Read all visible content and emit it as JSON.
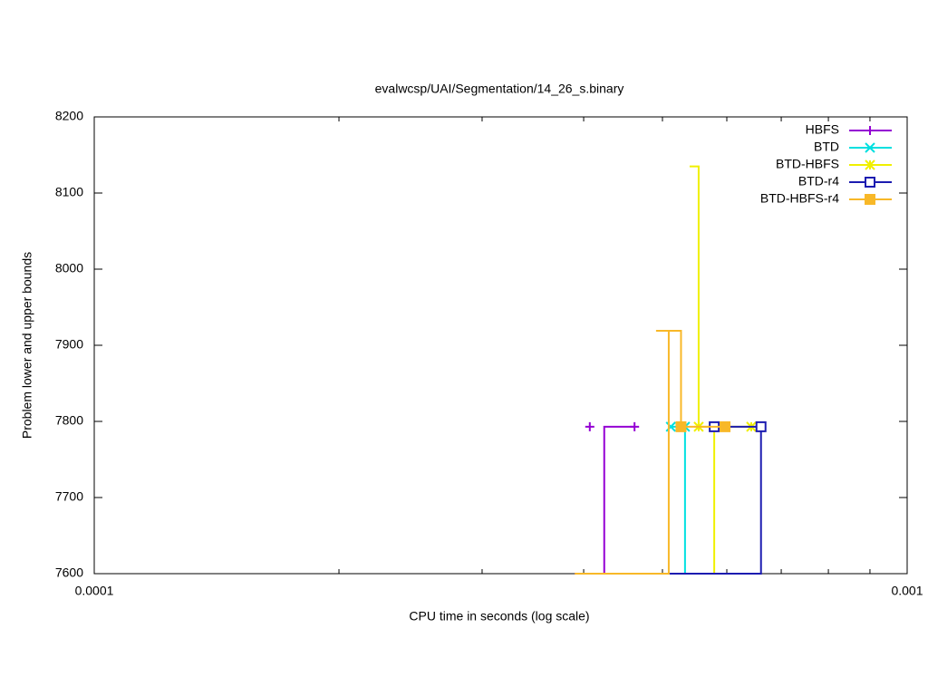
{
  "chart_data": {
    "type": "line",
    "title": "evalwcsp/UAI/Segmentation/14_26_s.binary",
    "xlabel": "CPU time in seconds (log scale)",
    "ylabel": "Problem lower and upper bounds",
    "xscale": "log",
    "xlim": [
      0.0001,
      0.001
    ],
    "xticks": [
      0.0001,
      0.001
    ],
    "xminorticks": [
      0.0002,
      0.0003,
      0.0004,
      0.0005,
      0.0006,
      0.0007,
      0.0008,
      0.0009
    ],
    "ylim": [
      7600,
      8200
    ],
    "yticks": [
      7600,
      7700,
      7800,
      7900,
      8000,
      8100,
      8200
    ],
    "grid": false,
    "legend": "top-right",
    "series": [
      {
        "name": "HBFS",
        "color": "#9400d3",
        "marker": "plus",
        "x": [
          0.00039,
          0.000424,
          0.000424,
          0.000462
        ],
        "values": [
          7600,
          7600,
          7793,
          7793
        ],
        "marker_x": [
          0.000407,
          0.000462
        ],
        "marker_values": [
          7793,
          7793
        ]
      },
      {
        "name": "BTD",
        "color": "#00e0e0",
        "marker": "cross",
        "x": [
          0.000512,
          0.000533,
          0.000533
        ],
        "values": [
          7793,
          7793,
          7600
        ],
        "marker_x": [
          0.000512,
          0.000533
        ],
        "marker_values": [
          7793,
          7793
        ]
      },
      {
        "name": "BTD-HBFS",
        "color": "#f0f000",
        "marker": "star",
        "x": [
          0.00054,
          0.000554,
          0.000554,
          0.000643,
          null,
          0.000579,
          0.000579
        ],
        "values": [
          8135,
          8135,
          7793,
          7793,
          null,
          7793,
          7600
        ],
        "marker_x": [
          0.000554,
          0.000643
        ],
        "marker_values": [
          7793,
          7793
        ]
      },
      {
        "name": "BTD-r4",
        "color": "#1c1cb0",
        "marker": "square",
        "x": [
          0.000509,
          0.000661,
          0.000661,
          0.000579
        ],
        "values": [
          7600,
          7600,
          7793,
          7793
        ],
        "marker_x": [
          0.000579,
          0.000661
        ],
        "marker_values": [
          7793,
          7793
        ]
      },
      {
        "name": "BTD-HBFS-r4",
        "color": "#f8b828",
        "marker": "filled-square",
        "x": [
          0.00039,
          0.000509,
          0.000509,
          0.000491,
          null,
          0.000509,
          0.000527,
          0.000527,
          0.000597
        ],
        "values": [
          7600,
          7600,
          7919,
          7919,
          null,
          7919,
          7919,
          7793,
          7793
        ],
        "marker_x": [
          0.000527,
          0.000597
        ],
        "marker_values": [
          7793,
          7793
        ]
      }
    ]
  }
}
